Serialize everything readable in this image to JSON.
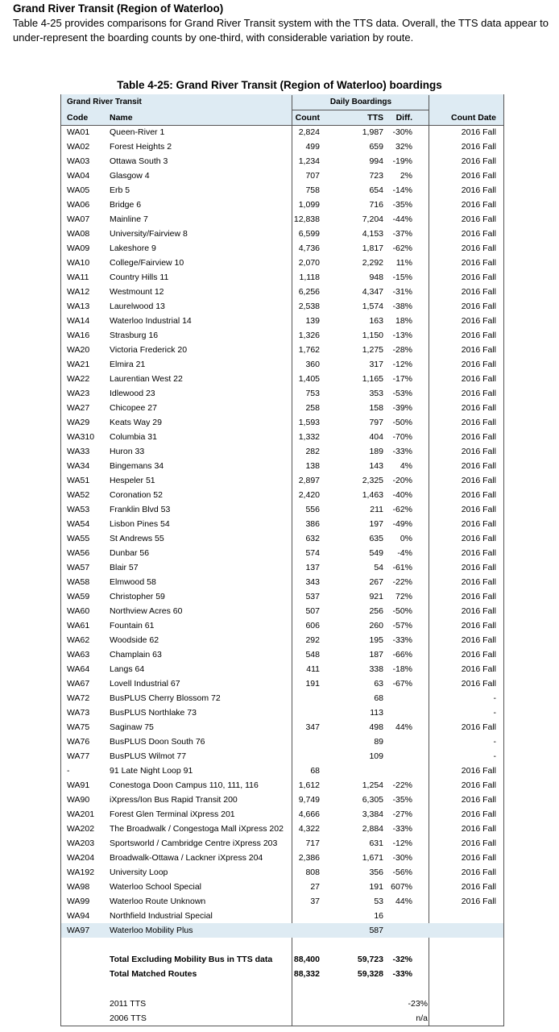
{
  "heading": "Grand River Transit (Region of Waterloo)",
  "intro": "Table 4-25 provides comparisons for Grand River Transit system with the TTS data. Overall, the TTS data appear to under-represent the boarding counts by one-third, with considerable variation by route.",
  "caption": "Table 4-25: Grand River Transit (Region of Waterloo) boardings",
  "header": {
    "group": "Grand River Transit",
    "daily": "Daily Boardings",
    "code": "Code",
    "name": "Name",
    "count": "Count",
    "tts": "TTS",
    "diff": "Diff.",
    "date": "Count Date"
  },
  "highlight_color": "#deebf3",
  "rows": [
    [
      "WA01",
      "Queen-River 1",
      "2,824",
      "1,987",
      "-30%",
      "2016 Fall"
    ],
    [
      "WA02",
      "Forest Heights 2",
      "499",
      "659",
      "32%",
      "2016 Fall"
    ],
    [
      "WA03",
      "Ottawa South 3",
      "1,234",
      "994",
      "-19%",
      "2016 Fall"
    ],
    [
      "WA04",
      "Glasgow 4",
      "707",
      "723",
      "2%",
      "2016 Fall"
    ],
    [
      "WA05",
      "Erb 5",
      "758",
      "654",
      "-14%",
      "2016 Fall"
    ],
    [
      "WA06",
      "Bridge 6",
      "1,099",
      "716",
      "-35%",
      "2016 Fall"
    ],
    [
      "WA07",
      "Mainline 7",
      "12,838",
      "7,204",
      "-44%",
      "2016 Fall"
    ],
    [
      "WA08",
      "University/Fairview 8",
      "6,599",
      "4,153",
      "-37%",
      "2016 Fall"
    ],
    [
      "WA09",
      "Lakeshore 9",
      "4,736",
      "1,817",
      "-62%",
      "2016 Fall"
    ],
    [
      "WA10",
      "College/Fairview 10",
      "2,070",
      "2,292",
      "11%",
      "2016 Fall"
    ],
    [
      "WA11",
      "Country Hills 11",
      "1,118",
      "948",
      "-15%",
      "2016 Fall"
    ],
    [
      "WA12",
      "Westmount 12",
      "6,256",
      "4,347",
      "-31%",
      "2016 Fall"
    ],
    [
      "WA13",
      "Laurelwood 13",
      "2,538",
      "1,574",
      "-38%",
      "2016 Fall"
    ],
    [
      "WA14",
      "Waterloo Industrial 14",
      "139",
      "163",
      "18%",
      "2016 Fall"
    ],
    [
      "WA16",
      "Strasburg 16",
      "1,326",
      "1,150",
      "-13%",
      "2016 Fall"
    ],
    [
      "WA20",
      "Victoria Frederick 20",
      "1,762",
      "1,275",
      "-28%",
      "2016 Fall"
    ],
    [
      "WA21",
      "Elmira 21",
      "360",
      "317",
      "-12%",
      "2016 Fall"
    ],
    [
      "WA22",
      "Laurentian West 22",
      "1,405",
      "1,165",
      "-17%",
      "2016 Fall"
    ],
    [
      "WA23",
      "Idlewood 23",
      "753",
      "353",
      "-53%",
      "2016 Fall"
    ],
    [
      "WA27",
      "Chicopee 27",
      "258",
      "158",
      "-39%",
      "2016 Fall"
    ],
    [
      "WA29",
      "Keats Way 29",
      "1,593",
      "797",
      "-50%",
      "2016 Fall"
    ],
    [
      "WA310",
      "Columbia 31",
      "1,332",
      "404",
      "-70%",
      "2016 Fall"
    ],
    [
      "WA33",
      "Huron 33",
      "282",
      "189",
      "-33%",
      "2016 Fall"
    ],
    [
      "WA34",
      "Bingemans 34",
      "138",
      "143",
      "4%",
      "2016 Fall"
    ],
    [
      "WA51",
      "Hespeler 51",
      "2,897",
      "2,325",
      "-20%",
      "2016 Fall"
    ],
    [
      "WA52",
      "Coronation 52",
      "2,420",
      "1,463",
      "-40%",
      "2016 Fall"
    ],
    [
      "WA53",
      "Franklin Blvd 53",
      "556",
      "211",
      "-62%",
      "2016 Fall"
    ],
    [
      "WA54",
      "Lisbon Pines 54",
      "386",
      "197",
      "-49%",
      "2016 Fall"
    ],
    [
      "WA55",
      "St Andrews 55",
      "632",
      "635",
      "0%",
      "2016 Fall"
    ],
    [
      "WA56",
      "Dunbar 56",
      "574",
      "549",
      "-4%",
      "2016 Fall"
    ],
    [
      "WA57",
      "Blair 57",
      "137",
      "54",
      "-61%",
      "2016 Fall"
    ],
    [
      "WA58",
      "Elmwood 58",
      "343",
      "267",
      "-22%",
      "2016 Fall"
    ],
    [
      "WA59",
      "Christopher 59",
      "537",
      "921",
      "72%",
      "2016 Fall"
    ],
    [
      "WA60",
      "Northview Acres 60",
      "507",
      "256",
      "-50%",
      "2016 Fall"
    ],
    [
      "WA61",
      "Fountain 61",
      "606",
      "260",
      "-57%",
      "2016 Fall"
    ],
    [
      "WA62",
      "Woodside 62",
      "292",
      "195",
      "-33%",
      "2016 Fall"
    ],
    [
      "WA63",
      "Champlain 63",
      "548",
      "187",
      "-66%",
      "2016 Fall"
    ],
    [
      "WA64",
      "Langs 64",
      "411",
      "338",
      "-18%",
      "2016 Fall"
    ],
    [
      "WA67",
      "Lovell Industrial 67",
      "191",
      "63",
      "-67%",
      "2016 Fall"
    ],
    [
      "WA72",
      "BusPLUS Cherry Blossom 72",
      "",
      "68",
      "",
      "-"
    ],
    [
      "WA73",
      "BusPLUS Northlake 73",
      "",
      "113",
      "",
      "-"
    ],
    [
      "WA75",
      "Saginaw 75",
      "347",
      "498",
      "44%",
      "2016 Fall"
    ],
    [
      "WA76",
      "BusPLUS Doon South 76",
      "",
      "89",
      "",
      "-"
    ],
    [
      "WA77",
      "BusPLUS Wilmot 77",
      "",
      "109",
      "",
      "-"
    ],
    [
      "-",
      " 91 Late Night Loop 91",
      "68",
      "",
      "",
      "2016 Fall"
    ],
    [
      "WA91",
      "Conestoga Doon Campus 110, 111, 116",
      "1,612",
      "1,254",
      "-22%",
      "2016 Fall"
    ],
    [
      "WA90",
      "iXpress/Ion Bus Rapid Transit 200",
      "9,749",
      "6,305",
      "-35%",
      "2016 Fall"
    ],
    [
      "WA201",
      "Forest Glen Terminal iXpress 201",
      "4,666",
      "3,384",
      "-27%",
      "2016 Fall"
    ],
    [
      "WA202",
      "The Broadwalk / Congestoga Mall iXpress 202",
      "4,322",
      "2,884",
      "-33%",
      "2016 Fall"
    ],
    [
      "WA203",
      "Sportsworld / Cambridge Centre iXpress 203",
      "717",
      "631",
      "-12%",
      "2016 Fall"
    ],
    [
      "WA204",
      "Broadwalk-Ottawa / Lackner iXpress 204",
      "2,386",
      "1,671",
      "-30%",
      "2016 Fall"
    ],
    [
      "WA192",
      "University Loop",
      "808",
      "356",
      "-56%",
      "2016 Fall"
    ],
    [
      "WA98",
      "Waterloo School Special",
      "27",
      "191",
      "607%",
      "2016 Fall"
    ],
    [
      "WA99",
      "Waterloo Route Unknown",
      "37",
      "53",
      "44%",
      "2016 Fall"
    ],
    [
      "WA94",
      "Northfield Industrial Special",
      "",
      "16",
      "",
      ""
    ],
    [
      "WA97",
      "Waterloo Mobility Plus",
      "",
      "587",
      "",
      ""
    ]
  ],
  "totals": [
    {
      "label": "Total Excluding Mobility Bus in TTS data",
      "count": "88,400",
      "tts": "59,723",
      "diff": "-32%"
    },
    {
      "label": "Total Matched Routes",
      "count": "88,332",
      "tts": "59,328",
      "diff": "-33%"
    }
  ],
  "history": [
    {
      "label": "2011 TTS",
      "diff": "-23%"
    },
    {
      "label": "2006 TTS",
      "diff": "n/a"
    }
  ]
}
